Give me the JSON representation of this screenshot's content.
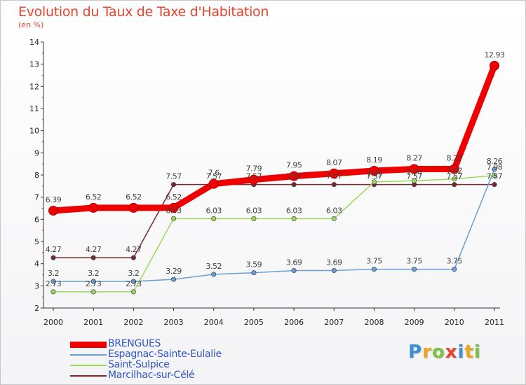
{
  "chart_data": {
    "type": "line",
    "title": "Evolution du Taux de Taxe d'Habitation",
    "ylabel": "(en %)",
    "xlabel": "",
    "categories": [
      "2000",
      "2001",
      "2002",
      "2003",
      "2004",
      "2005",
      "2006",
      "2007",
      "2008",
      "2009",
      "2010",
      "2011"
    ],
    "ylim": [
      2,
      14
    ],
    "yticks": [
      "2",
      "3",
      "4",
      "5",
      "6",
      "7",
      "8",
      "9",
      "10",
      "11",
      "12",
      "13",
      "14"
    ],
    "series": [
      {
        "name": "BRENGUES",
        "color": "#ee0000",
        "values": [
          6.39,
          6.52,
          6.52,
          6.52,
          7.6,
          7.79,
          7.95,
          8.07,
          8.19,
          8.27,
          8.27,
          12.93
        ],
        "labels": [
          "6.39",
          "6.52",
          "6.52",
          "6.52",
          "7.6",
          "7.79",
          "7.95",
          "8.07",
          "8.19",
          "8.27",
          "8.27",
          "12.93"
        ]
      },
      {
        "name": "Espagnac-Sainte-Eulalie",
        "color": "#6a9fd0",
        "values": [
          3.2,
          3.2,
          3.2,
          3.29,
          3.52,
          3.59,
          3.69,
          3.69,
          3.75,
          3.75,
          3.75,
          8.26
        ],
        "labels": [
          "3.2",
          "3.2",
          "3.2",
          "3.29",
          "3.52",
          "3.59",
          "3.69",
          "3.69",
          "3.75",
          "3.75",
          "3.75",
          "8.26"
        ]
      },
      {
        "name": "Saint-Sulpice",
        "color": "#9ed85a",
        "values": [
          2.73,
          2.73,
          2.73,
          6.03,
          6.03,
          6.03,
          6.03,
          6.03,
          7.69,
          7.74,
          7.82,
          7.98
        ],
        "labels": [
          "2.73",
          "2.73",
          "2.73",
          "6.03",
          "6.03",
          "6.03",
          "6.03",
          "6.03",
          "7.69",
          "7.74",
          "7.82",
          "7.98"
        ]
      },
      {
        "name": "Marcilhac-sur-Célé",
        "color": "#7a2a2a",
        "values": [
          4.27,
          4.27,
          4.27,
          7.57,
          7.57,
          7.57,
          7.57,
          7.57,
          7.57,
          7.57,
          7.57,
          7.57
        ],
        "labels": [
          "4.27",
          "4.27",
          "4.27",
          "7.57",
          "7.57",
          "7.57",
          "7.57",
          "7.57",
          "7.57",
          "7.57",
          "7.57",
          "7.57"
        ]
      }
    ],
    "legend_position": "bottom-left",
    "grid": false
  },
  "logo": {
    "letters": [
      "P",
      "r",
      "o",
      "x",
      "i",
      "t",
      "i"
    ],
    "colors": [
      "#3a8fd8",
      "#f2a31b",
      "#7cc242",
      "#e8452e",
      "#3a8fd8",
      "#f2a31b",
      "#7cc242"
    ]
  }
}
